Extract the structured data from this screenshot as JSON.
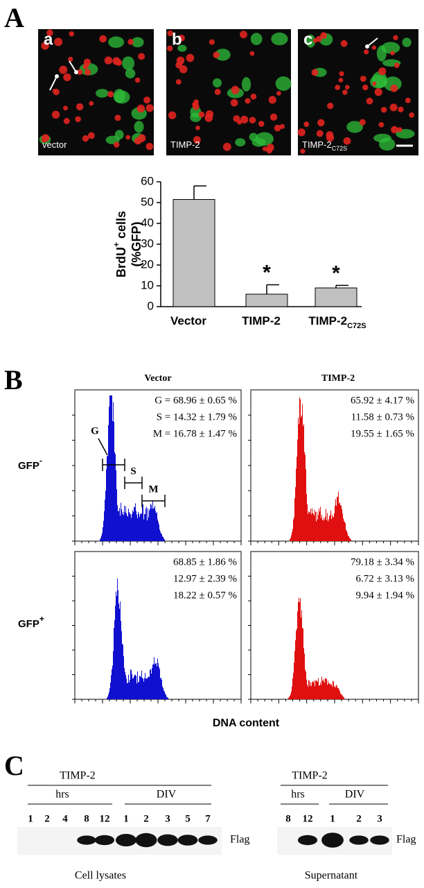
{
  "panel_a": {
    "label": "A",
    "images": [
      {
        "letter": "a",
        "caption": "vector"
      },
      {
        "letter": "b",
        "caption": "TIMP-2"
      },
      {
        "letter": "c",
        "caption": "TIMP-2",
        "caption_sub": "C72S"
      }
    ]
  },
  "chart_data": {
    "type": "bar",
    "ylabel": {
      "main": "BrdU",
      "sup": "+",
      "rest": " cells",
      "line2": "(%GFP)"
    },
    "categories": [
      "Vector",
      "TIMP-2",
      "TIMP-2"
    ],
    "category_subscripts": [
      null,
      null,
      "C72S"
    ],
    "values": [
      51.5,
      6,
      9
    ],
    "errors": [
      6.5,
      4.5,
      1.2
    ],
    "color": "#c0c0c0",
    "ylim": [
      0,
      60
    ],
    "yticks": [
      0,
      10,
      20,
      30,
      40,
      50,
      60
    ],
    "annotations": [
      "*",
      "*"
    ]
  },
  "panel_b": {
    "label": "B",
    "columns": [
      "Vector",
      "TIMP-2"
    ],
    "rows": [
      {
        "label": "GFP",
        "sup": "-"
      },
      {
        "label": "GFP",
        "sup": "+"
      }
    ],
    "stats": [
      [
        [
          "G = 68.96 ± 0.65 %",
          "S = 14.32 ± 1.79 %",
          "M = 16.78 ± 1.47 %"
        ],
        [
          "65.92 ± 4.17 %",
          "11.58 ± 0.73 %",
          "19.55 ± 1.65 %"
        ]
      ],
      [
        [
          "68.85 ± 1.86 %",
          "12.97 ± 2.39 %",
          "18.22 ± 0.57 %"
        ],
        [
          "79.18 ± 3.34 %",
          "6.72 ± 3.13 %",
          "9.94 ± 1.94 %"
        ]
      ]
    ],
    "gates": [
      "G",
      "S",
      "M"
    ],
    "xlabel": "DNA content"
  },
  "panel_c": {
    "label": "C",
    "blots": [
      {
        "group": "TIMP-2",
        "sub1": "hrs",
        "sub2": "DIV",
        "lanes": [
          "1",
          "2",
          "4",
          "8",
          "12",
          "1",
          "2",
          "3",
          "5",
          "7"
        ],
        "marker": "Flag",
        "caption": "Cell lysates"
      },
      {
        "group": "TIMP-2",
        "sub1": "hrs",
        "sub2": "DIV",
        "lanes": [
          "8",
          "12",
          "1",
          "2",
          "3"
        ],
        "marker": "Flag",
        "caption": "Supernatant"
      }
    ]
  }
}
